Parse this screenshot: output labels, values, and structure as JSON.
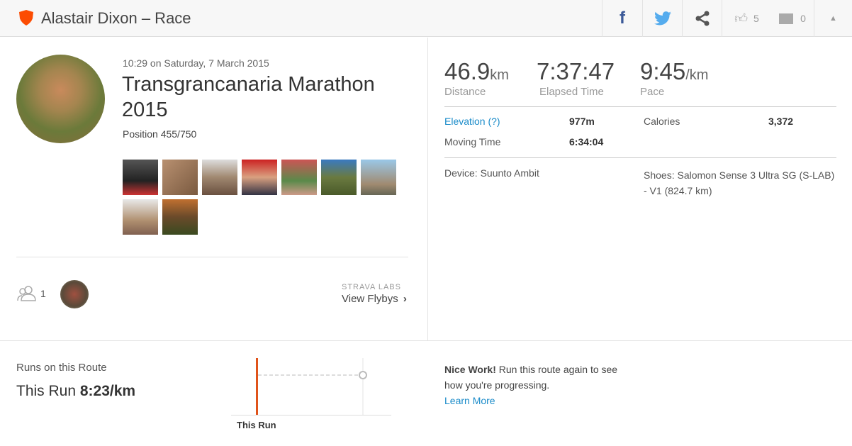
{
  "header": {
    "title": "Alastair Dixon – Race",
    "kudos_count": "5",
    "comment_count": "0"
  },
  "activity": {
    "datetime": "10:29 on Saturday, 7 March 2015",
    "name": "Transgrancanaria Marathon 2015",
    "position": "Position 455/750",
    "photo_count": 9
  },
  "stats": {
    "distance": {
      "value": "46.9",
      "unit": "km",
      "label": "Distance"
    },
    "elapsed": {
      "value": "7:37:47",
      "label": "Elapsed Time"
    },
    "pace": {
      "value": "9:45",
      "unit": "/km",
      "label": "Pace"
    },
    "elevation_label": "Elevation (?)",
    "elevation": "977m",
    "calories_label": "Calories",
    "calories": "3,372",
    "moving_label": "Moving Time",
    "moving": "6:34:04",
    "device": "Device: Suunto Ambit",
    "shoes": "Shoes: Salomon Sense 3 Ultra SG (S-LAB) - V1 (824.7 km)"
  },
  "social": {
    "athletes_count": "1",
    "labs": "STRAVA LABS",
    "flybys": "View Flybys"
  },
  "route": {
    "heading": "Runs on this Route",
    "this_run_label": "This Run",
    "this_run_pace": "8:23/km",
    "chart_label": "This Run",
    "nice": "Nice Work!",
    "message": " Run this route again to see how you're progressing.",
    "learn_more": "Learn More"
  },
  "colors": {
    "brand": "#fc4c02",
    "link": "#1a8bc9",
    "facebook": "#3b5998",
    "twitter": "#55acee"
  }
}
